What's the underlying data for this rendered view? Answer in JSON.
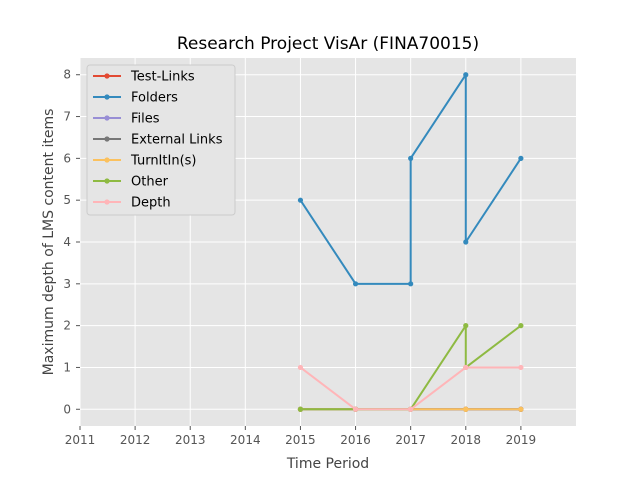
{
  "chart_data": {
    "type": "line",
    "title": "Research Project VisAr (FINA70015)",
    "xlabel": "Time Period",
    "ylabel": "Maximum depth of LMS content items",
    "xlim": [
      2011,
      2020
    ],
    "ylim": [
      -0.4,
      8.4
    ],
    "xticks": [
      "2011",
      "2012",
      "2013",
      "2014",
      "2015",
      "2016",
      "2017",
      "2018",
      "2019"
    ],
    "yticks": [
      "0",
      "1",
      "2",
      "3",
      "4",
      "5",
      "6",
      "7",
      "8"
    ],
    "grid": true,
    "legend_position": "upper-left",
    "series": [
      {
        "name": "Test-Links",
        "color": "#E24A33",
        "x": [
          2015,
          2016,
          2017,
          2017,
          2018,
          2018,
          2019
        ],
        "y": [
          0,
          0,
          0,
          0,
          0,
          0,
          0
        ]
      },
      {
        "name": "Folders",
        "color": "#348ABD",
        "x": [
          2015,
          2016,
          2017,
          2017,
          2018,
          2018,
          2019
        ],
        "y": [
          5,
          3,
          3,
          6,
          8,
          4,
          6
        ]
      },
      {
        "name": "Files",
        "color": "#988ED5",
        "x": [
          2015,
          2016,
          2017,
          2017,
          2018,
          2018,
          2019
        ],
        "y": [
          0,
          0,
          0,
          0,
          0,
          0,
          0
        ]
      },
      {
        "name": "External Links",
        "color": "#777777",
        "x": [
          2015,
          2016,
          2017,
          2017,
          2018,
          2018,
          2019
        ],
        "y": [
          0,
          0,
          0,
          0,
          0,
          0,
          0
        ]
      },
      {
        "name": "TurnItIn(s)",
        "color": "#FBC15E",
        "x": [
          2015,
          2016,
          2017,
          2017,
          2018,
          2018,
          2019
        ],
        "y": [
          0,
          0,
          0,
          0,
          0,
          0,
          0
        ]
      },
      {
        "name": "Other",
        "color": "#8EBA42",
        "x": [
          2015,
          2016,
          2017,
          2017,
          2018,
          2018,
          2019
        ],
        "y": [
          0,
          0,
          0,
          0,
          2,
          1,
          2
        ]
      },
      {
        "name": "Depth",
        "color": "#FFB5B8",
        "x": [
          2015,
          2016,
          2017,
          2017,
          2018,
          2018,
          2019
        ],
        "y": [
          1,
          0,
          0,
          0,
          1,
          1,
          1
        ]
      }
    ]
  }
}
